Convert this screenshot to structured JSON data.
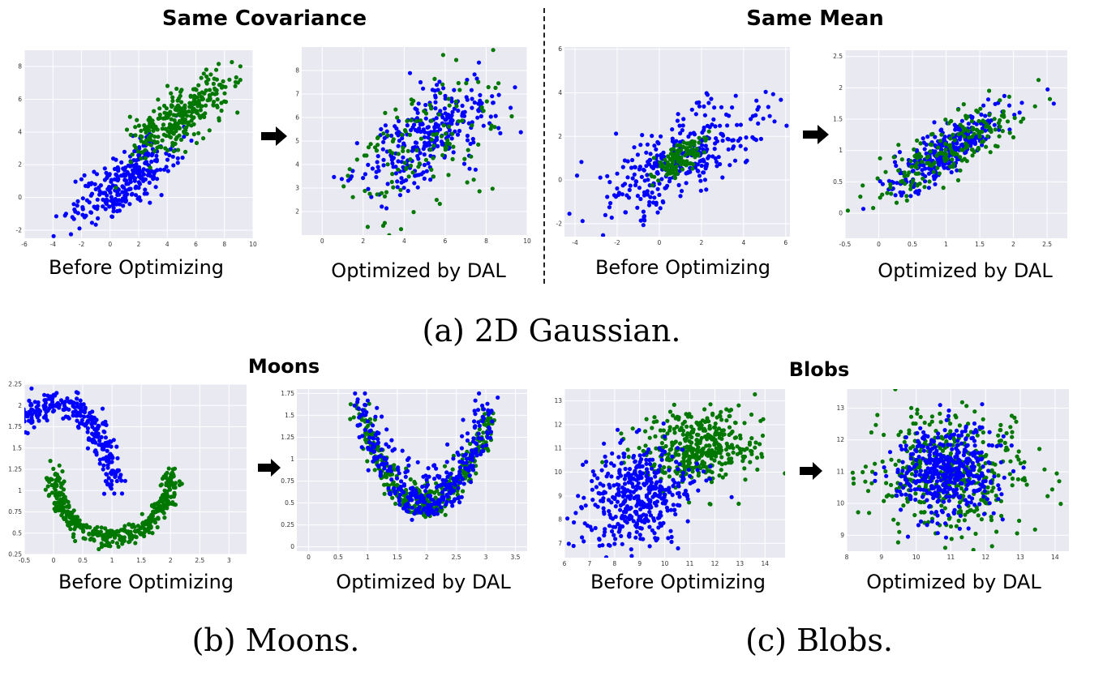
{
  "headings": {
    "same_covariance": "Same Covariance",
    "same_mean": "Same Mean",
    "moons": "Moons",
    "blobs": "Blobs"
  },
  "captions": {
    "a": "(a) 2D Gaussian.",
    "b": "(b) Moons.",
    "c": "(c) Blobs."
  },
  "arrow_icon": "right-arrow-icon",
  "colors": {
    "series_blue": "#0000ff",
    "series_green": "#007800",
    "panel_bg": "#e9e9f2",
    "grid": "#ffffff"
  },
  "chart_data": [
    {
      "type": "scatter",
      "xlabel": "Before Optimizing",
      "xlim": [
        -6,
        10
      ],
      "ylim": [
        -2.5,
        9
      ],
      "xticks": [
        -6,
        -4,
        -2,
        0,
        2,
        4,
        6,
        8,
        10
      ],
      "yticks": [
        -2,
        0,
        2,
        4,
        6,
        8
      ],
      "grid": true,
      "series": [
        {
          "color": "blue",
          "center": [
            1,
            1
          ],
          "sd": [
            1.8,
            1.3
          ],
          "rho": 0.72,
          "n": 300
        },
        {
          "color": "green",
          "center": [
            5,
            5
          ],
          "sd": [
            1.8,
            1.3
          ],
          "rho": 0.72,
          "n": 300
        }
      ]
    },
    {
      "type": "scatter",
      "xlabel": "Optimized by DAL",
      "xlim": [
        -1,
        10
      ],
      "ylim": [
        1,
        9
      ],
      "xticks": [
        0,
        2,
        4,
        6,
        8,
        10
      ],
      "yticks": [
        2,
        3,
        4,
        5,
        6,
        7,
        8
      ],
      "grid": true,
      "series": [
        {
          "color": "blue",
          "center": [
            5,
            5
          ],
          "sd": [
            1.6,
            1.15
          ],
          "rho": 0.65,
          "n": 300
        },
        {
          "color": "green",
          "center": [
            5,
            5
          ],
          "sd": [
            2.1,
            1.6
          ],
          "rho": 0.6,
          "n": 140
        }
      ]
    },
    {
      "type": "scatter",
      "xlabel": "Before Optimizing",
      "xlim": [
        -4.5,
        6.2
      ],
      "ylim": [
        -2.6,
        6.1
      ],
      "xticks": [
        -4,
        -2,
        0,
        2,
        4,
        6
      ],
      "yticks": [
        -2,
        0,
        2,
        4,
        6
      ],
      "grid": true,
      "series": [
        {
          "color": "blue",
          "center": [
            1,
            1
          ],
          "sd": [
            1.9,
            1.3
          ],
          "rho": 0.7,
          "n": 320
        },
        {
          "color": "green",
          "center": [
            1,
            1
          ],
          "sd": [
            0.6,
            0.45
          ],
          "rho": 0.7,
          "n": 130
        }
      ]
    },
    {
      "type": "scatter",
      "xlabel": "Optimized by DAL",
      "xlim": [
        -0.5,
        2.8
      ],
      "ylim": [
        -0.4,
        2.6
      ],
      "xticks": [
        -0.5,
        0.0,
        0.5,
        1.0,
        1.5,
        2.0,
        2.5
      ],
      "yticks": [
        0.0,
        0.5,
        1.0,
        1.5,
        2.0,
        2.5
      ],
      "grid": true,
      "series": [
        {
          "color": "blue",
          "center": [
            1,
            1
          ],
          "sd": [
            0.45,
            0.33
          ],
          "rho": 0.82,
          "n": 320
        },
        {
          "color": "green",
          "center": [
            1,
            1
          ],
          "sd": [
            0.55,
            0.4
          ],
          "rho": 0.82,
          "n": 200
        }
      ]
    },
    {
      "type": "scatter",
      "xlabel": "Before Optimizing",
      "xlim": [
        -0.5,
        3.3
      ],
      "ylim": [
        0.25,
        2.25
      ],
      "xticks": [
        -0.5,
        0.0,
        0.5,
        1.0,
        1.5,
        2.0,
        2.5,
        3.0
      ],
      "yticks": [
        0.25,
        0.5,
        0.75,
        1.0,
        1.25,
        1.5,
        1.75,
        2.0,
        2.25
      ],
      "grid": true,
      "series": [
        {
          "color": "blue",
          "shape": "upper-moon",
          "center": [
            1.0,
            1.4
          ],
          "n": 400
        },
        {
          "color": "green",
          "shape": "lower-moon",
          "center": [
            2.0,
            0.9
          ],
          "n": 400
        }
      ]
    },
    {
      "type": "scatter",
      "xlabel": "Optimized by DAL",
      "xlim": [
        -0.2,
        3.7
      ],
      "ylim": [
        -0.05,
        1.8
      ],
      "xticks": [
        0.0,
        0.5,
        1.0,
        1.5,
        2.0,
        2.5,
        3.0,
        3.5
      ],
      "yticks": [
        0.0,
        0.25,
        0.5,
        0.75,
        1.0,
        1.25,
        1.5,
        1.75
      ],
      "grid": true,
      "series": [
        {
          "color": "green",
          "shape": "u-curve",
          "center": [
            2.0,
            0.8
          ],
          "n": 380
        },
        {
          "color": "blue",
          "shape": "u-curve",
          "center": [
            2.0,
            0.8
          ],
          "n": 360
        }
      ]
    },
    {
      "type": "scatter",
      "xlabel": "Before Optimizing",
      "xlim": [
        6,
        14.8
      ],
      "ylim": [
        6.4,
        13.5
      ],
      "xticks": [
        6,
        7,
        8,
        9,
        10,
        11,
        12,
        13,
        14
      ],
      "yticks": [
        7,
        8,
        9,
        10,
        11,
        12,
        13
      ],
      "grid": true,
      "series": [
        {
          "color": "green",
          "center": [
            11.3,
            11.0
          ],
          "sd": [
            1.1,
            0.8
          ],
          "rho": 0.1,
          "n": 420
        },
        {
          "color": "blue",
          "center": [
            9.0,
            9.0
          ],
          "sd": [
            1.1,
            1.05
          ],
          "rho": 0.2,
          "n": 420
        }
      ]
    },
    {
      "type": "scatter",
      "xlabel": "Optimized by DAL",
      "xlim": [
        8,
        14.4
      ],
      "ylim": [
        8.5,
        13.6
      ],
      "xticks": [
        8,
        9,
        10,
        11,
        12,
        13,
        14
      ],
      "yticks": [
        9,
        10,
        11,
        12,
        13
      ],
      "grid": true,
      "series": [
        {
          "color": "green",
          "center": [
            11.0,
            11.0
          ],
          "sd": [
            1.05,
            0.95
          ],
          "rho": 0.0,
          "n": 420
        },
        {
          "color": "blue",
          "center": [
            11.0,
            11.0
          ],
          "sd": [
            0.75,
            0.72
          ],
          "rho": 0.0,
          "n": 440
        }
      ]
    }
  ]
}
